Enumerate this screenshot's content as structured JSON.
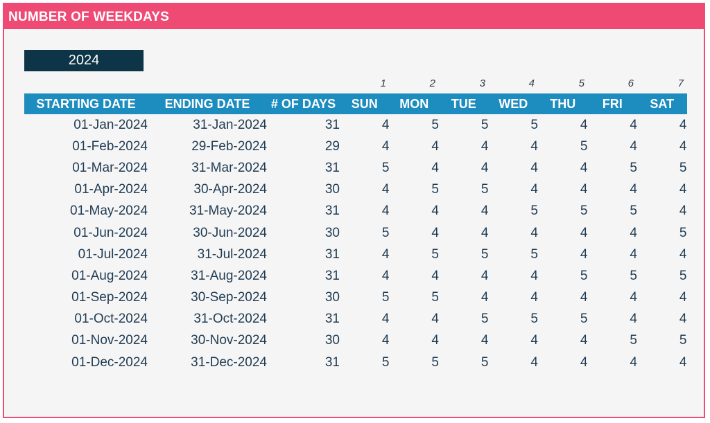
{
  "title": "NUMBER OF WEEKDAYS",
  "year": "2024",
  "day_numbers": [
    "1",
    "2",
    "3",
    "4",
    "5",
    "6",
    "7"
  ],
  "headers": {
    "start": "STARTING DATE",
    "end": "ENDING DATE",
    "days": "# OF DAYS",
    "weekdays": [
      "SUN",
      "MON",
      "TUE",
      "WED",
      "THU",
      "FRI",
      "SAT"
    ]
  },
  "rows": [
    {
      "start": "01-Jan-2024",
      "end": "31-Jan-2024",
      "days": "31",
      "counts": [
        "4",
        "5",
        "5",
        "5",
        "4",
        "4",
        "4"
      ]
    },
    {
      "start": "01-Feb-2024",
      "end": "29-Feb-2024",
      "days": "29",
      "counts": [
        "4",
        "4",
        "4",
        "4",
        "5",
        "4",
        "4"
      ]
    },
    {
      "start": "01-Mar-2024",
      "end": "31-Mar-2024",
      "days": "31",
      "counts": [
        "5",
        "4",
        "4",
        "4",
        "4",
        "5",
        "5"
      ]
    },
    {
      "start": "01-Apr-2024",
      "end": "30-Apr-2024",
      "days": "30",
      "counts": [
        "4",
        "5",
        "5",
        "4",
        "4",
        "4",
        "4"
      ]
    },
    {
      "start": "01-May-2024",
      "end": "31-May-2024",
      "days": "31",
      "counts": [
        "4",
        "4",
        "4",
        "5",
        "5",
        "5",
        "4"
      ]
    },
    {
      "start": "01-Jun-2024",
      "end": "30-Jun-2024",
      "days": "30",
      "counts": [
        "5",
        "4",
        "4",
        "4",
        "4",
        "4",
        "5"
      ]
    },
    {
      "start": "01-Jul-2024",
      "end": "31-Jul-2024",
      "days": "31",
      "counts": [
        "4",
        "5",
        "5",
        "5",
        "4",
        "4",
        "4"
      ]
    },
    {
      "start": "01-Aug-2024",
      "end": "31-Aug-2024",
      "days": "31",
      "counts": [
        "4",
        "4",
        "4",
        "4",
        "5",
        "5",
        "5"
      ]
    },
    {
      "start": "01-Sep-2024",
      "end": "30-Sep-2024",
      "days": "30",
      "counts": [
        "5",
        "5",
        "4",
        "4",
        "4",
        "4",
        "4"
      ]
    },
    {
      "start": "01-Oct-2024",
      "end": "31-Oct-2024",
      "days": "31",
      "counts": [
        "4",
        "4",
        "5",
        "5",
        "5",
        "4",
        "4"
      ]
    },
    {
      "start": "01-Nov-2024",
      "end": "30-Nov-2024",
      "days": "30",
      "counts": [
        "4",
        "4",
        "4",
        "4",
        "4",
        "5",
        "5"
      ]
    },
    {
      "start": "01-Dec-2024",
      "end": "31-Dec-2024",
      "days": "31",
      "counts": [
        "5",
        "5",
        "5",
        "4",
        "4",
        "4",
        "4"
      ]
    }
  ],
  "colors": {
    "accent": "#ee4a74",
    "header": "#1d8cbf",
    "year_box": "#0d3447",
    "text": "#1f3b52"
  }
}
